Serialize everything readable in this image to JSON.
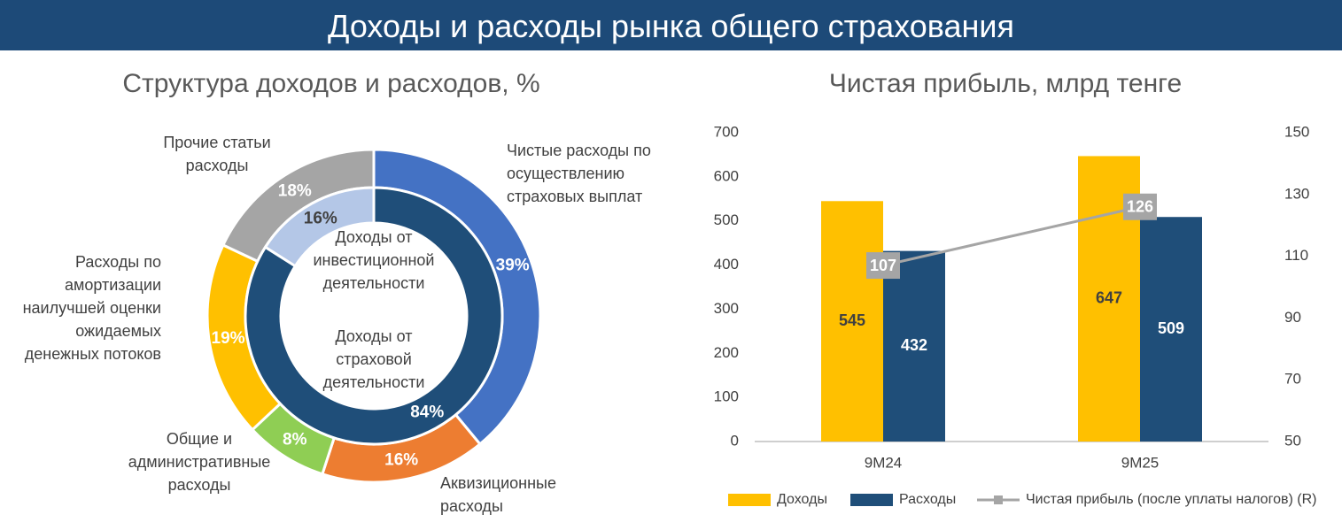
{
  "header": {
    "title": "Доходы и расходы рынка общего страхования"
  },
  "chart_data": [
    {
      "type": "donut",
      "title": "Структура доходов и расходов, %",
      "series": [
        {
          "categories": [
            "Чистые расходы по\nосуществлению\nстраховых выплат",
            "Аквизиционные\nрасходы",
            "Общие и\nадминистративные\nрасходы",
            "Расходы по\nамортизации\nнаилучшей оценки\nожидаемых\nденежных потоков",
            "Прочие статьи\nрасходы"
          ],
          "values": [
            39,
            16,
            8,
            19,
            18
          ],
          "value_labels": [
            "39%",
            "16%",
            "8%",
            "19%",
            "18%"
          ],
          "colors": [
            "#4472c4",
            "#ed7d31",
            "#8fce54",
            "#ffc000",
            "#a5a5a5"
          ]
        },
        {
          "categories": [
            "Доходы от\nстраховой\nдеятельности",
            "Доходы от\nинвестиционной\nдеятельности"
          ],
          "values": [
            84,
            16
          ],
          "value_labels": [
            "84%",
            "16%"
          ],
          "colors": [
            "#1f4e79",
            "#b4c7e7"
          ]
        }
      ]
    },
    {
      "type": "bar-line",
      "title": "Чистая прибыль, млрд тенге",
      "categories": [
        "9M24",
        "9M25"
      ],
      "series": [
        {
          "name": "Доходы",
          "type": "bar",
          "color": "#ffc000",
          "values": [
            545,
            647
          ]
        },
        {
          "name": "Расходы",
          "type": "bar",
          "color": "#1f4e79",
          "values": [
            432,
            509
          ]
        },
        {
          "name": "Чистая прибыль (после уплаты налогов) (R)",
          "type": "line",
          "axis": "y2",
          "color": "#a5a5a5",
          "values": [
            107,
            126
          ]
        }
      ],
      "ylim": [
        0,
        700
      ],
      "yticks": [
        0,
        100,
        200,
        300,
        400,
        500,
        600,
        700
      ],
      "y2lim": [
        50,
        150
      ],
      "y2ticks": [
        50,
        70,
        90,
        110,
        130,
        150
      ],
      "legend": "bottom"
    }
  ]
}
